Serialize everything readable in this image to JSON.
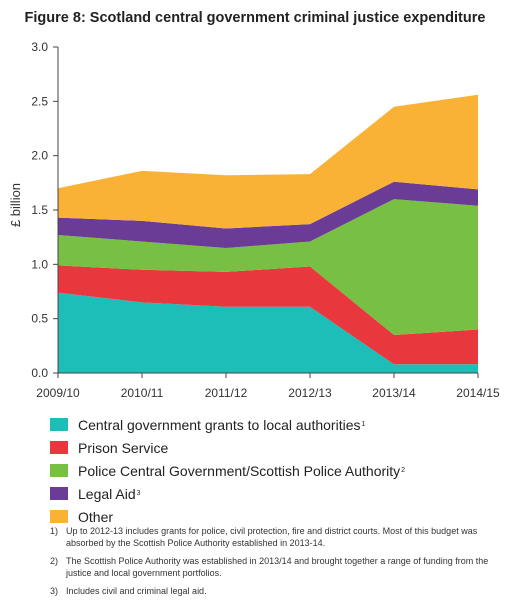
{
  "chart_data": {
    "type": "area",
    "title": "Figure 8: Scotland central government criminal justice expenditure",
    "ylabel": "£ billion",
    "xlabel": "",
    "categories": [
      "2009/10",
      "2010/11",
      "2011/12",
      "2012/13",
      "2013/14",
      "2014/15"
    ],
    "ylim": [
      0,
      3.0
    ],
    "yticks": [
      "0.0",
      "0.5",
      "1.0",
      "1.5",
      "2.0",
      "2.5",
      "3.0"
    ],
    "stacked": true,
    "grid": false,
    "series": [
      {
        "name": "Central government grants to local authorities",
        "sup": "1",
        "color": "#1dbdb8",
        "values": [
          0.74,
          0.65,
          0.61,
          0.61,
          0.08,
          0.08
        ]
      },
      {
        "name": "Prison Service",
        "sup": "",
        "color": "#e8383d",
        "values": [
          0.25,
          0.3,
          0.32,
          0.37,
          0.27,
          0.32
        ]
      },
      {
        "name": "Police Central Government/Scottish Police Authority",
        "sup": "2",
        "color": "#77c043",
        "values": [
          0.28,
          0.26,
          0.22,
          0.23,
          1.25,
          1.14
        ]
      },
      {
        "name": "Legal Aid",
        "sup": "3",
        "color": "#6a3c95",
        "values": [
          0.16,
          0.19,
          0.18,
          0.16,
          0.16,
          0.15
        ]
      },
      {
        "name": "Other",
        "sup": "",
        "color": "#f9b235",
        "values": [
          0.27,
          0.46,
          0.49,
          0.46,
          0.69,
          0.87
        ]
      }
    ]
  },
  "notes": [
    {
      "num": "1)",
      "text": "Up to 2012-13 includes grants for police, civil protection, fire and district courts. Most of this budget was absorbed by the Scottish Police Authority established in 2013-14."
    },
    {
      "num": "2)",
      "text": "The Scottish Police Authority was established in 2013/14 and brought together a range of funding from the justice and local government portfolios."
    },
    {
      "num": "3)",
      "text": "Includes civil and criminal legal aid."
    }
  ]
}
